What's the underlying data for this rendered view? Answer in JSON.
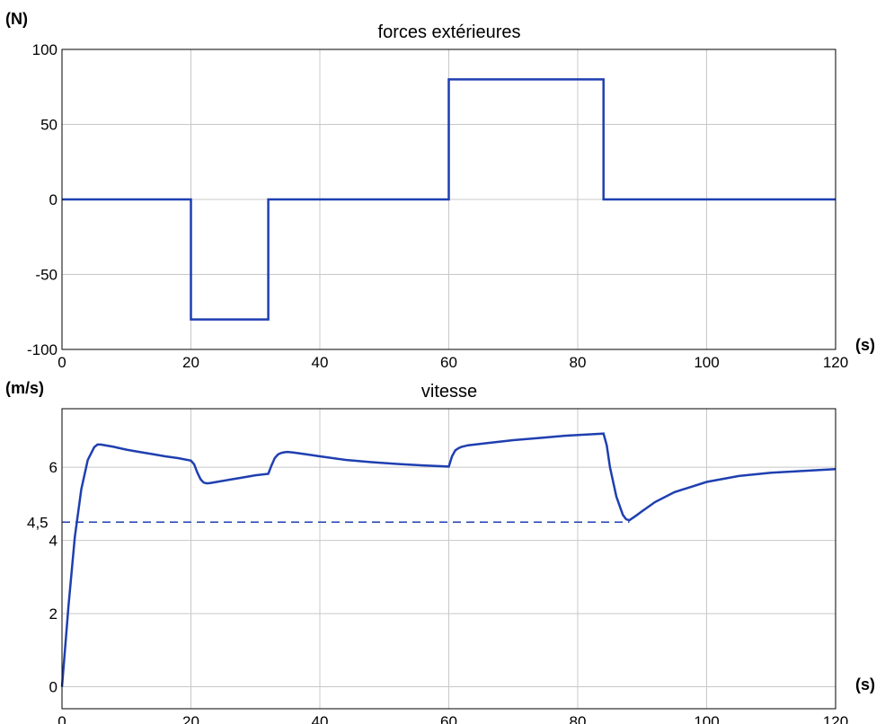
{
  "colors": {
    "line": "#1f3fb0",
    "grid": "#c8c8c8",
    "axis": "#000000",
    "background": "#ffffff"
  },
  "chart_data": [
    {
      "type": "line",
      "title": "forces extérieures",
      "xlabel": "(s)",
      "ylabel": "(N)",
      "xlim": [
        0,
        120
      ],
      "ylim": [
        -100,
        100
      ],
      "xticks": [
        0,
        20,
        40,
        60,
        80,
        100,
        120
      ],
      "yticks": [
        -100,
        -50,
        0,
        50,
        100
      ],
      "grid": true,
      "series": [
        {
          "x": [
            0,
            20,
            20,
            32,
            32,
            60,
            60,
            84,
            84,
            120
          ],
          "y": [
            0,
            0,
            -80,
            -80,
            0,
            0,
            80,
            80,
            0,
            0
          ]
        }
      ]
    },
    {
      "type": "line",
      "title": "vitesse",
      "xlabel": "(s)",
      "ylabel": "(m/s)",
      "xlim": [
        0,
        120
      ],
      "ylim": [
        -0.6,
        7.6
      ],
      "xticks": [
        0,
        20,
        40,
        60,
        80,
        100,
        120
      ],
      "yticks": [
        0,
        2,
        4,
        6
      ],
      "grid": true,
      "annotations": [
        {
          "label": "4,5",
          "y": 4.5,
          "style": "dashed",
          "x_start": 0,
          "x_end": 88
        }
      ],
      "series": [
        {
          "x": [
            0,
            1,
            2,
            3,
            4,
            5,
            5.5,
            6,
            8,
            10,
            12,
            14,
            16,
            18,
            20,
            20.5,
            21,
            21.5,
            22,
            22.5,
            23,
            24,
            26,
            28,
            30,
            32,
            32.5,
            33,
            33.5,
            34,
            34.5,
            35,
            36,
            38,
            40,
            44,
            48,
            52,
            56,
            60,
            60.5,
            61,
            61.5,
            62,
            63,
            66,
            70,
            74,
            78,
            82,
            84,
            84.5,
            85,
            86,
            87,
            87.5,
            88,
            89,
            90,
            92,
            95,
            100,
            105,
            110,
            115,
            120
          ],
          "y": [
            0,
            2.2,
            4.1,
            5.4,
            6.2,
            6.55,
            6.62,
            6.62,
            6.56,
            6.48,
            6.42,
            6.36,
            6.3,
            6.25,
            6.18,
            6.08,
            5.85,
            5.67,
            5.58,
            5.56,
            5.57,
            5.6,
            5.66,
            5.72,
            5.78,
            5.82,
            6.05,
            6.25,
            6.35,
            6.39,
            6.41,
            6.42,
            6.4,
            6.35,
            6.3,
            6.2,
            6.14,
            6.09,
            6.05,
            6.02,
            6.3,
            6.46,
            6.52,
            6.56,
            6.6,
            6.66,
            6.74,
            6.8,
            6.86,
            6.9,
            6.92,
            6.6,
            6.0,
            5.2,
            4.7,
            4.58,
            4.55,
            4.67,
            4.8,
            5.05,
            5.32,
            5.6,
            5.76,
            5.85,
            5.9,
            5.95
          ]
        }
      ]
    }
  ]
}
